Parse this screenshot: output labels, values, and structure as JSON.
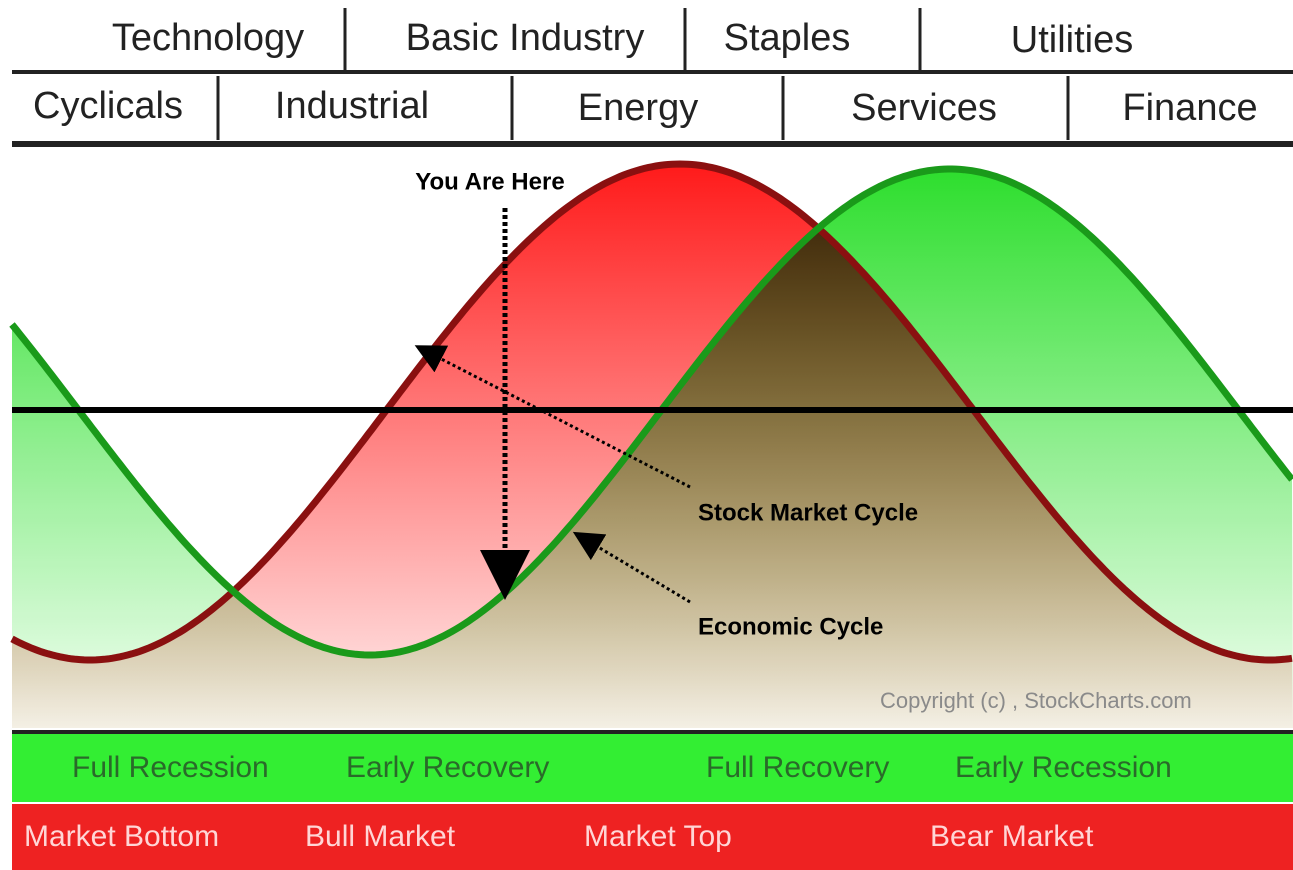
{
  "top_row": [
    "Technology",
    "Basic Industry",
    "Staples",
    "Utilities"
  ],
  "second_row": [
    "Cyclicals",
    "Industrial",
    "Energy",
    "Services",
    "Finance"
  ],
  "annotations": {
    "you_are_here": "You Are Here",
    "stock_market_cycle": "Stock Market Cycle",
    "economic_cycle": "Economic Cycle"
  },
  "copyright": "Copyright (c) , StockCharts.com",
  "economic_phases": [
    "Full Recession",
    "Early Recovery",
    "Full Recovery",
    "Early Recession"
  ],
  "market_phases": [
    "Market Bottom",
    "Bull Market",
    "Market Top",
    "Bear Market"
  ]
}
